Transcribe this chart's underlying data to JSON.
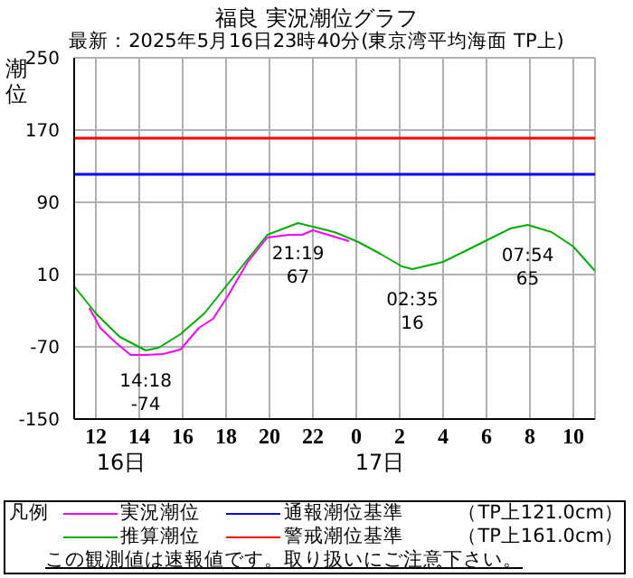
{
  "chart_data": {
    "type": "line",
    "title": "福良 実況潮位グラフ",
    "subtitle": "最新：2025年5月16日23時40分(東京湾平均海面 TP上)",
    "ylabel": "潮位",
    "legend_title": "凡例",
    "xlim": [
      "2025-05-16T11:00",
      "2025-05-17T11:00"
    ],
    "xticks": [
      {
        "value": "2025-05-16T12:00",
        "label": "12"
      },
      {
        "value": "2025-05-16T14:00",
        "label": "14"
      },
      {
        "value": "2025-05-16T16:00",
        "label": "16"
      },
      {
        "value": "2025-05-16T18:00",
        "label": "18"
      },
      {
        "value": "2025-05-16T20:00",
        "label": "20"
      },
      {
        "value": "2025-05-16T22:00",
        "label": "22"
      },
      {
        "value": "2025-05-17T00:00",
        "label": "0"
      },
      {
        "value": "2025-05-17T02:00",
        "label": "2"
      },
      {
        "value": "2025-05-17T04:00",
        "label": "4"
      },
      {
        "value": "2025-05-17T06:00",
        "label": "6"
      },
      {
        "value": "2025-05-17T08:00",
        "label": "8"
      },
      {
        "value": "2025-05-17T10:00",
        "label": "10"
      }
    ],
    "ylim": [
      -150,
      250
    ],
    "yticks": [
      -150,
      -70,
      10,
      90,
      170,
      250
    ],
    "grid": true,
    "legend": "bottom",
    "marker": "none",
    "line_style": "solid",
    "series": [
      {
        "name": "実況潮位",
        "color": "#ff00ff",
        "x": [
          "2025-05-16T11:42",
          "2025-05-16T12:12",
          "2025-05-16T12:54",
          "2025-05-16T13:36",
          "2025-05-16T14:15",
          "2025-05-16T15:06",
          "2025-05-16T15:54",
          "2025-05-16T16:45",
          "2025-05-16T17:24",
          "2025-05-16T18:06",
          "2025-05-16T19:00",
          "2025-05-16T19:54",
          "2025-05-16T20:54",
          "2025-05-16T21:30",
          "2025-05-16T22:00",
          "2025-05-16T22:42",
          "2025-05-16T23:40"
        ],
        "values": [
          -27,
          -49,
          -65,
          -79,
          -79,
          -78,
          -73,
          -49,
          -39,
          -13,
          24,
          51,
          54,
          54,
          59,
          54,
          47
        ]
      },
      {
        "name": "推算潮位",
        "color": "#00b000",
        "x": [
          "2025-05-16T11:00",
          "2025-05-16T12:00",
          "2025-05-16T13:06",
          "2025-05-16T14:18",
          "2025-05-16T14:54",
          "2025-05-16T15:54",
          "2025-05-16T17:00",
          "2025-05-16T18:00",
          "2025-05-16T19:00",
          "2025-05-16T19:54",
          "2025-05-16T21:19",
          "2025-05-16T22:00",
          "2025-05-16T23:00",
          "2025-05-17T00:06",
          "2025-05-17T01:06",
          "2025-05-17T02:06",
          "2025-05-17T02:35",
          "2025-05-17T04:00",
          "2025-05-17T05:06",
          "2025-05-17T06:06",
          "2025-05-17T07:06",
          "2025-05-17T07:54",
          "2025-05-17T09:00",
          "2025-05-17T10:00",
          "2025-05-17T11:00"
        ],
        "values": [
          -3,
          -33,
          -59,
          -74,
          -71,
          -56,
          -33,
          -3,
          27,
          54,
          67,
          63,
          57,
          46,
          33,
          19,
          16,
          24,
          37,
          49,
          61,
          65,
          57,
          41,
          14
        ]
      }
    ],
    "ref_lines": [
      {
        "axis": "y",
        "value": 121,
        "label": "通報潮位基準",
        "color": "#0000ff"
      },
      {
        "axis": "y",
        "value": 161,
        "label": "警戒潮位基準",
        "color": "#ff0000"
      }
    ],
    "annotations": [
      "16日",
      "17日",
      {
        "text": "21:19\n67",
        "x": "2025-05-16T21:19",
        "y": 67
      },
      {
        "text": "02:35\n16",
        "x": "2025-05-17T02:35",
        "y": 16
      },
      {
        "text": "07:54\n65",
        "x": "2025-05-17T07:54",
        "y": 65
      },
      {
        "text": "14:18\n-74",
        "x": "2025-05-16T14:18",
        "y": -74
      },
      "（TP上121.0cm）",
      "（TP上161.0cm）",
      "この観測値は速報値です。取り扱いにご注意下さい。"
    ]
  }
}
